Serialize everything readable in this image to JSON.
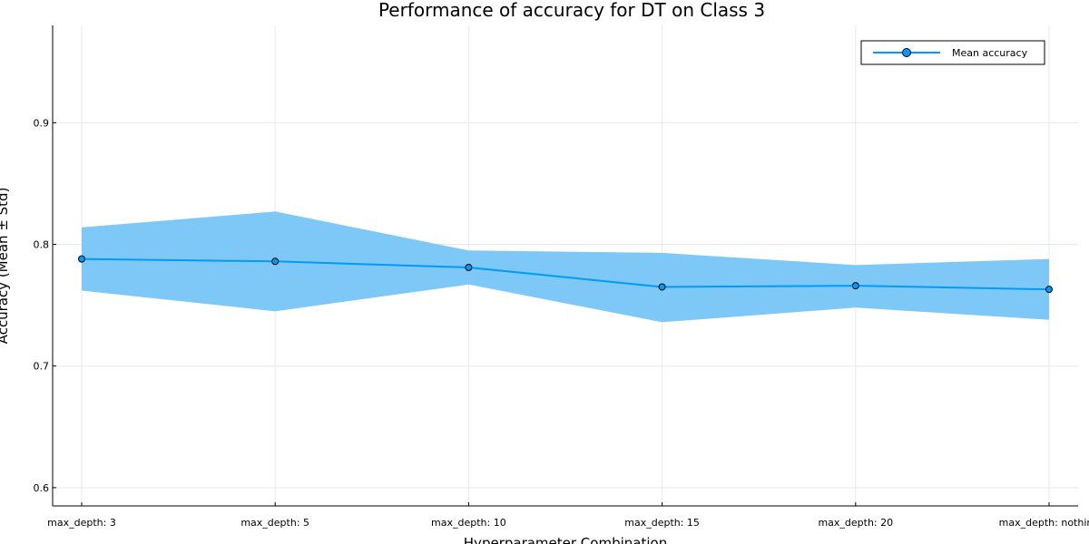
{
  "chart_data": {
    "type": "line",
    "title": "Performance of accuracy for DT on Class 3",
    "xlabel": "Hyperparameter Combination",
    "ylabel": "Accuracy (Mean ± Std)",
    "categories": [
      "max_depth: 3",
      "max_depth: 5",
      "max_depth: 10",
      "max_depth: 15",
      "max_depth: 20",
      "max_depth: nothing"
    ],
    "series": [
      {
        "name": "Mean accuracy",
        "values": [
          0.788,
          0.786,
          0.781,
          0.765,
          0.766,
          0.763
        ],
        "lower": [
          0.762,
          0.745,
          0.767,
          0.736,
          0.748,
          0.738
        ],
        "upper": [
          0.814,
          0.827,
          0.795,
          0.793,
          0.783,
          0.788
        ]
      }
    ],
    "ylim": [
      0.585,
      0.98
    ],
    "yticks": [
      0.6,
      0.7,
      0.8,
      0.9
    ],
    "ytick_labels": [
      "0.6",
      "0.7",
      "0.8",
      "0.9"
    ],
    "grid": true,
    "legend_position": "top-right",
    "colors": {
      "line": "#009af9",
      "band": "#7ec8f8"
    }
  }
}
